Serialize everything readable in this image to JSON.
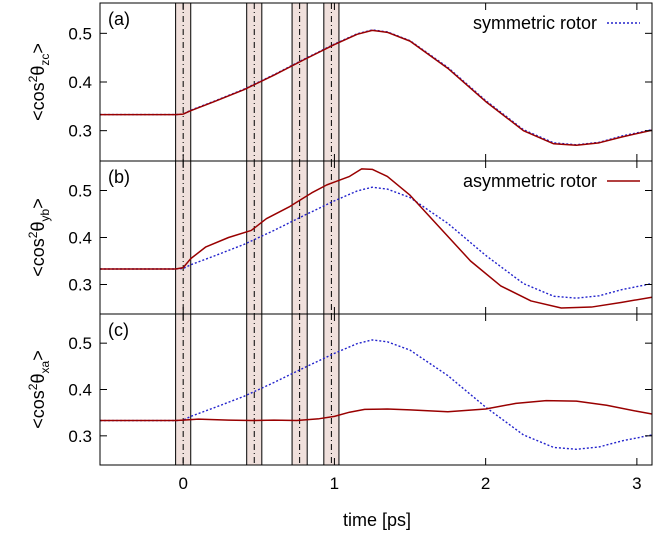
{
  "chart_data": [
    {
      "panel_label": "(a)",
      "type": "line",
      "ylabel": {
        "base": "<cos",
        "sup": "2",
        "theta": "θ",
        "sub": "zc",
        "close": ">"
      },
      "xlim": [
        -0.55,
        3.1
      ],
      "ylim": [
        0.25,
        0.55
      ],
      "yticks": [
        0.3,
        0.4,
        0.5
      ],
      "legend": {
        "position": "top-right",
        "entries": [
          "symmetric rotor"
        ]
      },
      "series": [
        {
          "name": "symmetric rotor",
          "color": "#2222cc",
          "style": "dotted",
          "x": [
            -0.55,
            -0.05,
            0.0,
            0.05,
            0.2,
            0.4,
            0.6,
            0.8,
            1.0,
            1.15,
            1.25,
            1.35,
            1.5,
            1.75,
            2.0,
            2.25,
            2.45,
            2.6,
            2.75,
            2.9,
            3.1
          ],
          "y": [
            0.333,
            0.333,
            0.334,
            0.342,
            0.36,
            0.385,
            0.415,
            0.447,
            0.478,
            0.499,
            0.507,
            0.503,
            0.485,
            0.43,
            0.362,
            0.302,
            0.275,
            0.271,
            0.276,
            0.289,
            0.302
          ]
        },
        {
          "name": "asymmetric rotor",
          "color": "#990000",
          "style": "solid",
          "x": [
            -0.55,
            -0.05,
            0.0,
            0.05,
            0.2,
            0.4,
            0.6,
            0.8,
            1.0,
            1.15,
            1.25,
            1.35,
            1.5,
            1.75,
            2.0,
            2.25,
            2.45,
            2.6,
            2.75,
            2.9,
            3.1
          ],
          "y": [
            0.333,
            0.333,
            0.334,
            0.341,
            0.359,
            0.384,
            0.414,
            0.446,
            0.477,
            0.498,
            0.506,
            0.502,
            0.484,
            0.428,
            0.36,
            0.3,
            0.273,
            0.27,
            0.275,
            0.287,
            0.301
          ]
        }
      ]
    },
    {
      "panel_label": "(b)",
      "type": "line",
      "ylabel": {
        "base": "<cos",
        "sup": "2",
        "theta": "θ",
        "sub": "yb",
        "close": ">"
      },
      "xlim": [
        -0.55,
        3.1
      ],
      "ylim": [
        0.25,
        0.55
      ],
      "yticks": [
        0.3,
        0.4,
        0.5
      ],
      "legend": {
        "position": "top-right",
        "entries": [
          "asymmetric rotor"
        ]
      },
      "series": [
        {
          "name": "symmetric rotor",
          "color": "#2222cc",
          "style": "dotted",
          "x": [
            -0.55,
            -0.05,
            0.0,
            0.05,
            0.2,
            0.4,
            0.6,
            0.8,
            1.0,
            1.15,
            1.25,
            1.35,
            1.5,
            1.75,
            2.0,
            2.25,
            2.45,
            2.6,
            2.75,
            2.9,
            3.1
          ],
          "y": [
            0.333,
            0.333,
            0.334,
            0.342,
            0.36,
            0.385,
            0.415,
            0.447,
            0.478,
            0.499,
            0.507,
            0.503,
            0.485,
            0.43,
            0.362,
            0.302,
            0.275,
            0.271,
            0.276,
            0.289,
            0.302
          ]
        },
        {
          "name": "asymmetric rotor",
          "color": "#990000",
          "style": "solid",
          "x": [
            -0.55,
            -0.05,
            0.0,
            0.05,
            0.15,
            0.3,
            0.45,
            0.55,
            0.7,
            0.75,
            0.85,
            0.95,
            1.0,
            1.1,
            1.18,
            1.25,
            1.35,
            1.5,
            1.7,
            1.9,
            2.1,
            2.3,
            2.5,
            2.7,
            2.9,
            3.1
          ],
          "y": [
            0.333,
            0.333,
            0.336,
            0.355,
            0.38,
            0.4,
            0.415,
            0.44,
            0.465,
            0.475,
            0.495,
            0.512,
            0.518,
            0.53,
            0.546,
            0.545,
            0.53,
            0.49,
            0.42,
            0.35,
            0.297,
            0.265,
            0.25,
            0.252,
            0.262,
            0.273
          ]
        }
      ]
    },
    {
      "panel_label": "(c)",
      "type": "line",
      "ylabel": {
        "base": "<cos",
        "sup": "2",
        "theta": "θ",
        "sub": "xa",
        "close": ">"
      },
      "xlabel": "time [ps]",
      "xlim": [
        -0.55,
        3.1
      ],
      "ylim": [
        0.25,
        0.55
      ],
      "yticks": [
        0.3,
        0.4,
        0.5
      ],
      "xticks": [
        0,
        1,
        2,
        3
      ],
      "series": [
        {
          "name": "symmetric rotor",
          "color": "#2222cc",
          "style": "dotted",
          "x": [
            -0.55,
            -0.05,
            0.0,
            0.05,
            0.2,
            0.4,
            0.6,
            0.8,
            1.0,
            1.15,
            1.25,
            1.35,
            1.5,
            1.75,
            2.0,
            2.25,
            2.45,
            2.6,
            2.75,
            2.9,
            3.1
          ],
          "y": [
            0.333,
            0.333,
            0.334,
            0.342,
            0.36,
            0.385,
            0.415,
            0.447,
            0.478,
            0.499,
            0.507,
            0.503,
            0.485,
            0.43,
            0.362,
            0.302,
            0.275,
            0.271,
            0.276,
            0.289,
            0.302
          ]
        },
        {
          "name": "asymmetric rotor",
          "color": "#990000",
          "style": "solid",
          "x": [
            -0.55,
            -0.05,
            0.0,
            0.1,
            0.3,
            0.45,
            0.6,
            0.75,
            0.9,
            1.0,
            1.1,
            1.2,
            1.35,
            1.5,
            1.75,
            2.0,
            2.2,
            2.4,
            2.6,
            2.8,
            3.0,
            3.1
          ],
          "y": [
            0.333,
            0.333,
            0.334,
            0.336,
            0.334,
            0.333,
            0.334,
            0.333,
            0.337,
            0.342,
            0.351,
            0.357,
            0.358,
            0.356,
            0.352,
            0.358,
            0.37,
            0.376,
            0.375,
            0.366,
            0.353,
            0.347
          ]
        }
      ]
    }
  ],
  "pulses": {
    "centers": [
      0.0,
      0.47,
      0.77,
      0.98
    ],
    "band_halfwidth": 0.05,
    "fill": "#f0e0dc",
    "stroke": "#000000"
  }
}
